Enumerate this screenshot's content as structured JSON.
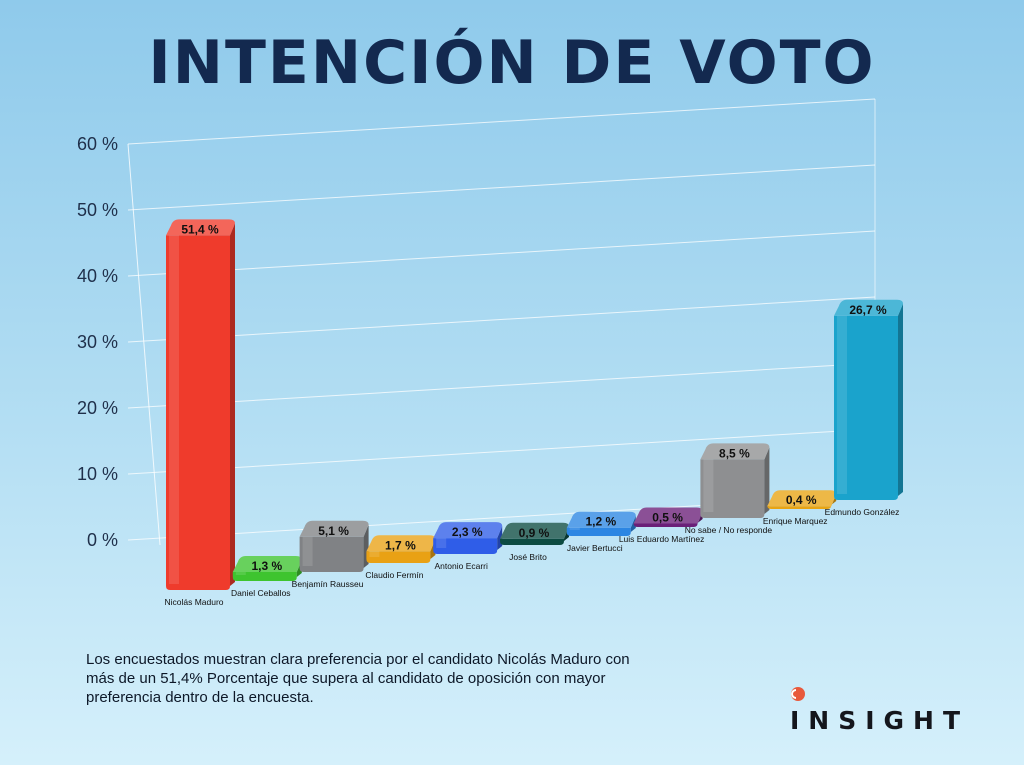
{
  "header": {
    "title": "INTENCIÓN DE VOTO"
  },
  "note": {
    "text": "Los encuestados muestran clara preferencia por el candidato Nicolás Maduro con más de un 51,4%  Porcentaje que supera al candidato de oposición con mayor preferencia dentro de la encuesta."
  },
  "brand": {
    "name": "INSIGHT",
    "mark_color": "#e8593c"
  },
  "chart_data": {
    "type": "bar",
    "title": "INTENCIÓN DE VOTO",
    "ylim": [
      0,
      60
    ],
    "yticks": [
      "0 %",
      "10 %",
      "20 %",
      "30 %",
      "40 %",
      "50 %",
      "60 %"
    ],
    "grid": true,
    "categories": [
      "Nicolás Maduro",
      "Daniel Ceballos",
      "Benjamín Rausseu",
      "Claudio Fermín",
      "Antonio Ecarri",
      "José Brito",
      "Javier Bertucci",
      "Luis Eduardo Martínez",
      "No sabe / No responde",
      "Enrique Marquez",
      "Edmundo González"
    ],
    "values": [
      51.4,
      1.3,
      5.1,
      1.7,
      2.3,
      0.9,
      1.2,
      0.5,
      8.5,
      0.4,
      26.7
    ],
    "value_labels": [
      "51,4 %",
      "1,3 %",
      "5,1 %",
      "1,7 %",
      "2,3 %",
      "0,9 %",
      "1,2 %",
      "0,5 %",
      "8,5 %",
      "0,4 %",
      "26,7 %"
    ],
    "colors": [
      "#ef3b2c",
      "#3ec42f",
      "#808285",
      "#e9a114",
      "#2f5de8",
      "#0c4b42",
      "#2c86e3",
      "#6a1f78",
      "#8e8f91",
      "#e8a413",
      "#1aa3cc"
    ]
  }
}
